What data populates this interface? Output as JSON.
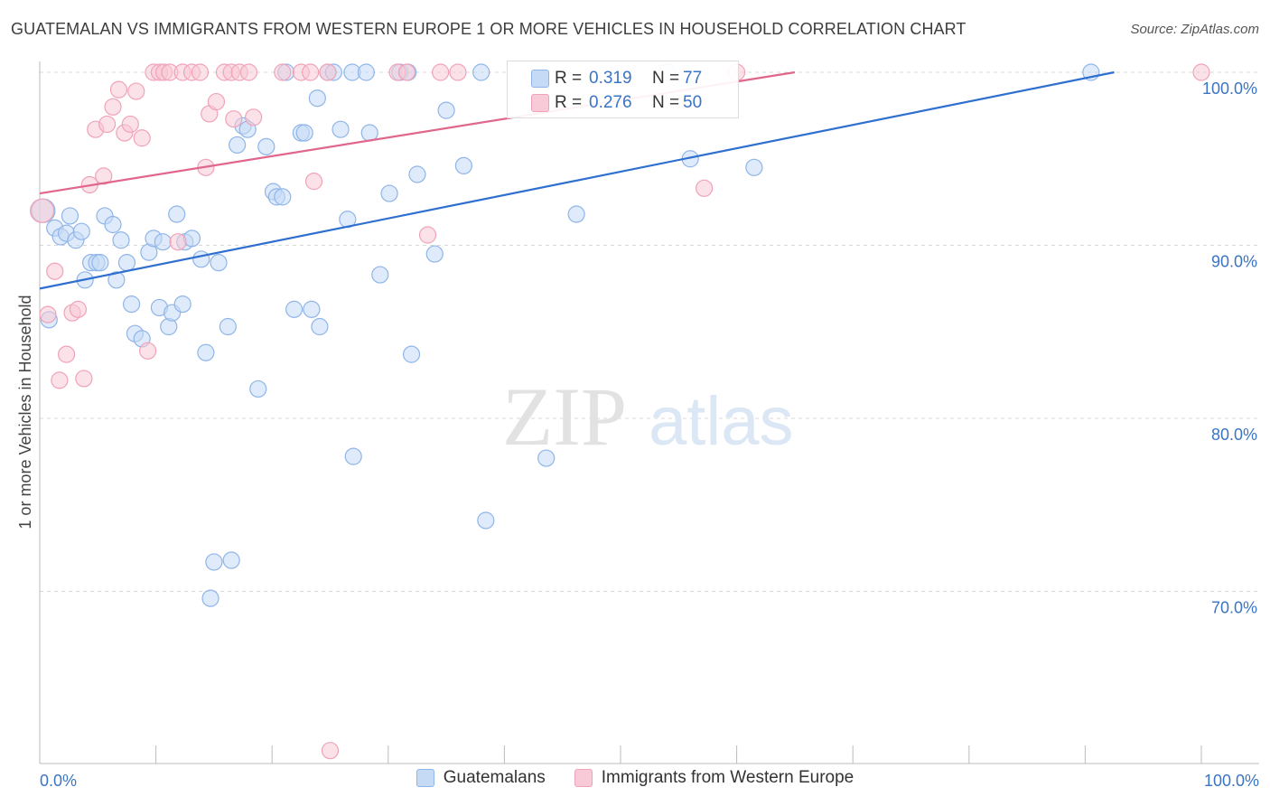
{
  "title": "GUATEMALAN VS IMMIGRANTS FROM WESTERN EUROPE 1 OR MORE VEHICLES IN HOUSEHOLD CORRELATION CHART",
  "source": "Source: ZipAtlas.com",
  "watermark": {
    "zip": "ZIP",
    "atlas": "atlas"
  },
  "legend": {
    "r_label": "R =",
    "n_label": "N =",
    "series": [
      {
        "name": "Guatemalans",
        "r": "0.319",
        "n": "77",
        "color": "#8fb5e8",
        "fill": "#c5daf5",
        "line": "#2f6fcf"
      },
      {
        "name": "Immigrants from Western Europe",
        "r": "0.276",
        "n": "50",
        "color": "#f0a3b8",
        "fill": "#f8c9d6",
        "line": "#e0668c"
      }
    ]
  },
  "chart_data": {
    "type": "scatter",
    "title": "GUATEMALAN VS IMMIGRANTS FROM WESTERN EUROPE 1 OR MORE VEHICLES IN HOUSEHOLD CORRELATION CHART",
    "xlabel": "",
    "ylabel": "1 or more Vehicles in Household",
    "xlim": [
      0,
      100
    ],
    "ylim": [
      60,
      100
    ],
    "x_tick_labels": [
      "0.0%",
      "100.0%"
    ],
    "y_ticks": [
      70,
      80,
      90,
      100
    ],
    "y_tick_labels": [
      "70.0%",
      "80.0%",
      "90.0%",
      "100.0%"
    ],
    "series": [
      {
        "name": "Guatemalans",
        "trend": {
          "x": [
            0,
            92.5
          ],
          "y": [
            87.5,
            100
          ]
        },
        "points": [
          [
            0.3,
            92.0
          ],
          [
            0.8,
            85.7
          ],
          [
            1.3,
            91.0
          ],
          [
            1.8,
            90.5
          ],
          [
            2.3,
            90.7
          ],
          [
            2.6,
            91.7
          ],
          [
            3.1,
            90.3
          ],
          [
            3.6,
            90.8
          ],
          [
            3.9,
            88.0
          ],
          [
            4.4,
            89.0
          ],
          [
            4.9,
            89.0
          ],
          [
            5.2,
            89.0
          ],
          [
            5.6,
            91.7
          ],
          [
            6.3,
            91.2
          ],
          [
            6.6,
            88.0
          ],
          [
            7.0,
            90.3
          ],
          [
            7.5,
            89.0
          ],
          [
            7.9,
            86.6
          ],
          [
            8.2,
            84.9
          ],
          [
            8.8,
            84.6
          ],
          [
            9.4,
            89.6
          ],
          [
            9.8,
            90.4
          ],
          [
            10.3,
            86.4
          ],
          [
            10.6,
            90.2
          ],
          [
            11.1,
            85.3
          ],
          [
            11.4,
            86.1
          ],
          [
            11.8,
            91.8
          ],
          [
            12.3,
            86.6
          ],
          [
            12.5,
            90.2
          ],
          [
            13.1,
            90.4
          ],
          [
            13.9,
            89.2
          ],
          [
            14.3,
            83.8
          ],
          [
            14.7,
            69.6
          ],
          [
            15.0,
            71.7
          ],
          [
            15.4,
            89.0
          ],
          [
            16.2,
            85.3
          ],
          [
            16.5,
            71.8
          ],
          [
            17.0,
            95.8
          ],
          [
            17.5,
            96.9
          ],
          [
            17.9,
            96.7
          ],
          [
            18.8,
            81.7
          ],
          [
            19.5,
            95.7
          ],
          [
            20.1,
            93.1
          ],
          [
            20.4,
            92.8
          ],
          [
            20.9,
            92.8
          ],
          [
            21.2,
            100.0
          ],
          [
            21.9,
            86.3
          ],
          [
            22.5,
            96.5
          ],
          [
            22.8,
            96.5
          ],
          [
            23.4,
            86.3
          ],
          [
            23.9,
            98.5
          ],
          [
            24.1,
            85.3
          ],
          [
            24.8,
            100.0
          ],
          [
            25.3,
            100.0
          ],
          [
            25.9,
            96.7
          ],
          [
            26.5,
            91.5
          ],
          [
            26.9,
            100.0
          ],
          [
            27.0,
            77.8
          ],
          [
            28.1,
            100.0
          ],
          [
            28.4,
            96.5
          ],
          [
            29.3,
            88.3
          ],
          [
            30.1,
            93.0
          ],
          [
            31.0,
            100.0
          ],
          [
            31.7,
            100.0
          ],
          [
            32.0,
            83.7
          ],
          [
            32.5,
            94.1
          ],
          [
            34.0,
            89.5
          ],
          [
            35.0,
            97.8
          ],
          [
            36.5,
            94.6
          ],
          [
            38.0,
            100.0
          ],
          [
            38.4,
            74.1
          ],
          [
            43.6,
            77.7
          ],
          [
            46.2,
            91.8
          ],
          [
            54.0,
            100.0
          ],
          [
            56.0,
            95.0
          ],
          [
            61.5,
            94.5
          ],
          [
            90.5,
            100.0
          ]
        ]
      },
      {
        "name": "Immigrants from Western Europe",
        "trend": {
          "x": [
            0,
            65
          ],
          "y": [
            93.0,
            100
          ]
        },
        "points": [
          [
            0.2,
            92.0
          ],
          [
            0.7,
            86.0
          ],
          [
            1.3,
            88.5
          ],
          [
            1.7,
            82.2
          ],
          [
            2.3,
            83.7
          ],
          [
            2.8,
            86.1
          ],
          [
            3.3,
            86.3
          ],
          [
            3.8,
            82.3
          ],
          [
            4.3,
            93.5
          ],
          [
            4.8,
            96.7
          ],
          [
            5.5,
            94.0
          ],
          [
            5.8,
            97.0
          ],
          [
            6.3,
            98.0
          ],
          [
            6.8,
            99.0
          ],
          [
            7.3,
            96.5
          ],
          [
            7.8,
            97.0
          ],
          [
            8.3,
            98.9
          ],
          [
            8.8,
            96.2
          ],
          [
            9.3,
            83.9
          ],
          [
            9.8,
            100.0
          ],
          [
            10.3,
            100.0
          ],
          [
            10.7,
            100.0
          ],
          [
            11.2,
            100.0
          ],
          [
            11.9,
            90.2
          ],
          [
            12.3,
            100.0
          ],
          [
            13.1,
            100.0
          ],
          [
            13.8,
            100.0
          ],
          [
            14.3,
            94.5
          ],
          [
            14.6,
            97.6
          ],
          [
            15.2,
            98.3
          ],
          [
            15.9,
            100.0
          ],
          [
            16.5,
            100.0
          ],
          [
            16.7,
            97.3
          ],
          [
            17.2,
            100.0
          ],
          [
            18.0,
            100.0
          ],
          [
            18.4,
            97.4
          ],
          [
            20.9,
            100.0
          ],
          [
            22.5,
            100.0
          ],
          [
            23.3,
            100.0
          ],
          [
            23.6,
            93.7
          ],
          [
            24.8,
            100.0
          ],
          [
            25.0,
            60.8
          ],
          [
            30.8,
            100.0
          ],
          [
            31.6,
            100.0
          ],
          [
            33.4,
            90.6
          ],
          [
            34.5,
            100.0
          ],
          [
            36.0,
            100.0
          ],
          [
            57.2,
            93.3
          ],
          [
            60.0,
            100.0
          ],
          [
            100.0,
            100.0
          ]
        ]
      }
    ]
  }
}
